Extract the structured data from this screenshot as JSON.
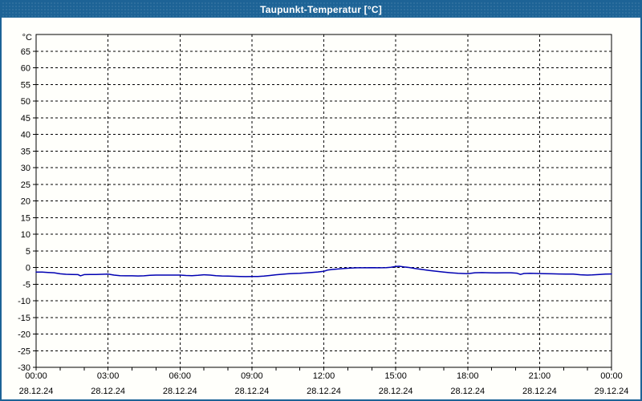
{
  "window": {
    "title": "Taupunkt-Temperatur [°C]"
  },
  "colors": {
    "titlebar_bg": "#1d6396",
    "window_border": "#1d6396",
    "background": "#fffffb",
    "frame": "#000000",
    "grid": "#000000",
    "line": "#0000b2",
    "text": "#000000"
  },
  "chart_data": {
    "type": "line",
    "title": "Taupunkt-Temperatur [°C]",
    "ylabel": "°C",
    "ylim": [
      -30,
      70
    ],
    "ytick_min": -30,
    "ytick_max": 65,
    "ytick_step": 5,
    "xlim": [
      0,
      24
    ],
    "x_minor_step_hours": 1,
    "x_major_step_hours": 3,
    "grid": "dashed",
    "legend": "none",
    "xticks": [
      {
        "t": 0,
        "time": "00:00",
        "date": "28.12.24"
      },
      {
        "t": 3,
        "time": "03:00",
        "date": "28.12.24"
      },
      {
        "t": 6,
        "time": "06:00",
        "date": "28.12.24"
      },
      {
        "t": 9,
        "time": "09:00",
        "date": "28.12.24"
      },
      {
        "t": 12,
        "time": "12:00",
        "date": "28.12.24"
      },
      {
        "t": 15,
        "time": "15:00",
        "date": "28.12.24"
      },
      {
        "t": 18,
        "time": "18:00",
        "date": "28.12.24"
      },
      {
        "t": 21,
        "time": "21:00",
        "date": "28.12.24"
      },
      {
        "t": 24,
        "time": "00:00",
        "date": "29.12.24"
      }
    ],
    "series": [
      {
        "name": "Taupunkt-Temperatur",
        "color": "#0000b2",
        "points": [
          [
            0.0,
            -1.4
          ],
          [
            0.25,
            -1.4
          ],
          [
            0.5,
            -1.5
          ],
          [
            0.75,
            -1.6
          ],
          [
            1.0,
            -1.9
          ],
          [
            1.25,
            -2.05
          ],
          [
            1.5,
            -2.1
          ],
          [
            1.75,
            -2.15
          ],
          [
            1.85,
            -2.5
          ],
          [
            2.0,
            -2.15
          ],
          [
            2.25,
            -2.1
          ],
          [
            2.5,
            -2.1
          ],
          [
            2.75,
            -2.05
          ],
          [
            3.0,
            -2.0
          ],
          [
            3.25,
            -2.3
          ],
          [
            3.5,
            -2.45
          ],
          [
            3.75,
            -2.5
          ],
          [
            4.0,
            -2.5
          ],
          [
            4.25,
            -2.55
          ],
          [
            4.5,
            -2.5
          ],
          [
            4.75,
            -2.35
          ],
          [
            5.0,
            -2.3
          ],
          [
            5.5,
            -2.3
          ],
          [
            6.0,
            -2.3
          ],
          [
            6.25,
            -2.4
          ],
          [
            6.5,
            -2.45
          ],
          [
            6.75,
            -2.35
          ],
          [
            7.0,
            -2.2
          ],
          [
            7.25,
            -2.3
          ],
          [
            7.5,
            -2.45
          ],
          [
            7.75,
            -2.55
          ],
          [
            8.0,
            -2.6
          ],
          [
            8.25,
            -2.65
          ],
          [
            8.5,
            -2.7
          ],
          [
            8.75,
            -2.75
          ],
          [
            9.0,
            -2.7
          ],
          [
            9.25,
            -2.7
          ],
          [
            9.5,
            -2.6
          ],
          [
            9.75,
            -2.4
          ],
          [
            10.0,
            -2.2
          ],
          [
            10.25,
            -2.05
          ],
          [
            10.5,
            -1.9
          ],
          [
            10.75,
            -1.8
          ],
          [
            11.0,
            -1.75
          ],
          [
            11.25,
            -1.65
          ],
          [
            11.5,
            -1.5
          ],
          [
            11.75,
            -1.35
          ],
          [
            12.0,
            -1.15
          ],
          [
            12.15,
            -0.8
          ],
          [
            12.35,
            -0.6
          ],
          [
            12.6,
            -0.45
          ],
          [
            12.85,
            -0.3
          ],
          [
            13.1,
            -0.2
          ],
          [
            13.4,
            -0.1
          ],
          [
            13.7,
            -0.1
          ],
          [
            14.0,
            -0.05
          ],
          [
            14.3,
            -0.1
          ],
          [
            14.6,
            -0.05
          ],
          [
            14.8,
            0.05
          ],
          [
            15.0,
            0.3
          ],
          [
            15.15,
            0.35
          ],
          [
            15.35,
            0.15
          ],
          [
            15.55,
            0.0
          ],
          [
            15.8,
            -0.3
          ],
          [
            16.1,
            -0.6
          ],
          [
            16.4,
            -0.9
          ],
          [
            16.7,
            -1.15
          ],
          [
            17.0,
            -1.4
          ],
          [
            17.3,
            -1.6
          ],
          [
            17.6,
            -1.75
          ],
          [
            18.0,
            -1.85
          ],
          [
            18.3,
            -1.6
          ],
          [
            18.6,
            -1.55
          ],
          [
            18.9,
            -1.6
          ],
          [
            19.2,
            -1.65
          ],
          [
            19.5,
            -1.6
          ],
          [
            19.8,
            -1.6
          ],
          [
            20.05,
            -1.7
          ],
          [
            20.2,
            -2.1
          ],
          [
            20.35,
            -1.8
          ],
          [
            20.6,
            -1.75
          ],
          [
            20.9,
            -1.8
          ],
          [
            21.2,
            -1.85
          ],
          [
            21.5,
            -1.9
          ],
          [
            21.8,
            -1.95
          ],
          [
            22.1,
            -2.0
          ],
          [
            22.4,
            -2.0
          ],
          [
            22.7,
            -2.2
          ],
          [
            23.0,
            -2.3
          ],
          [
            23.2,
            -2.25
          ],
          [
            23.5,
            -2.1
          ],
          [
            23.75,
            -2.0
          ],
          [
            24.0,
            -1.95
          ]
        ]
      }
    ]
  }
}
